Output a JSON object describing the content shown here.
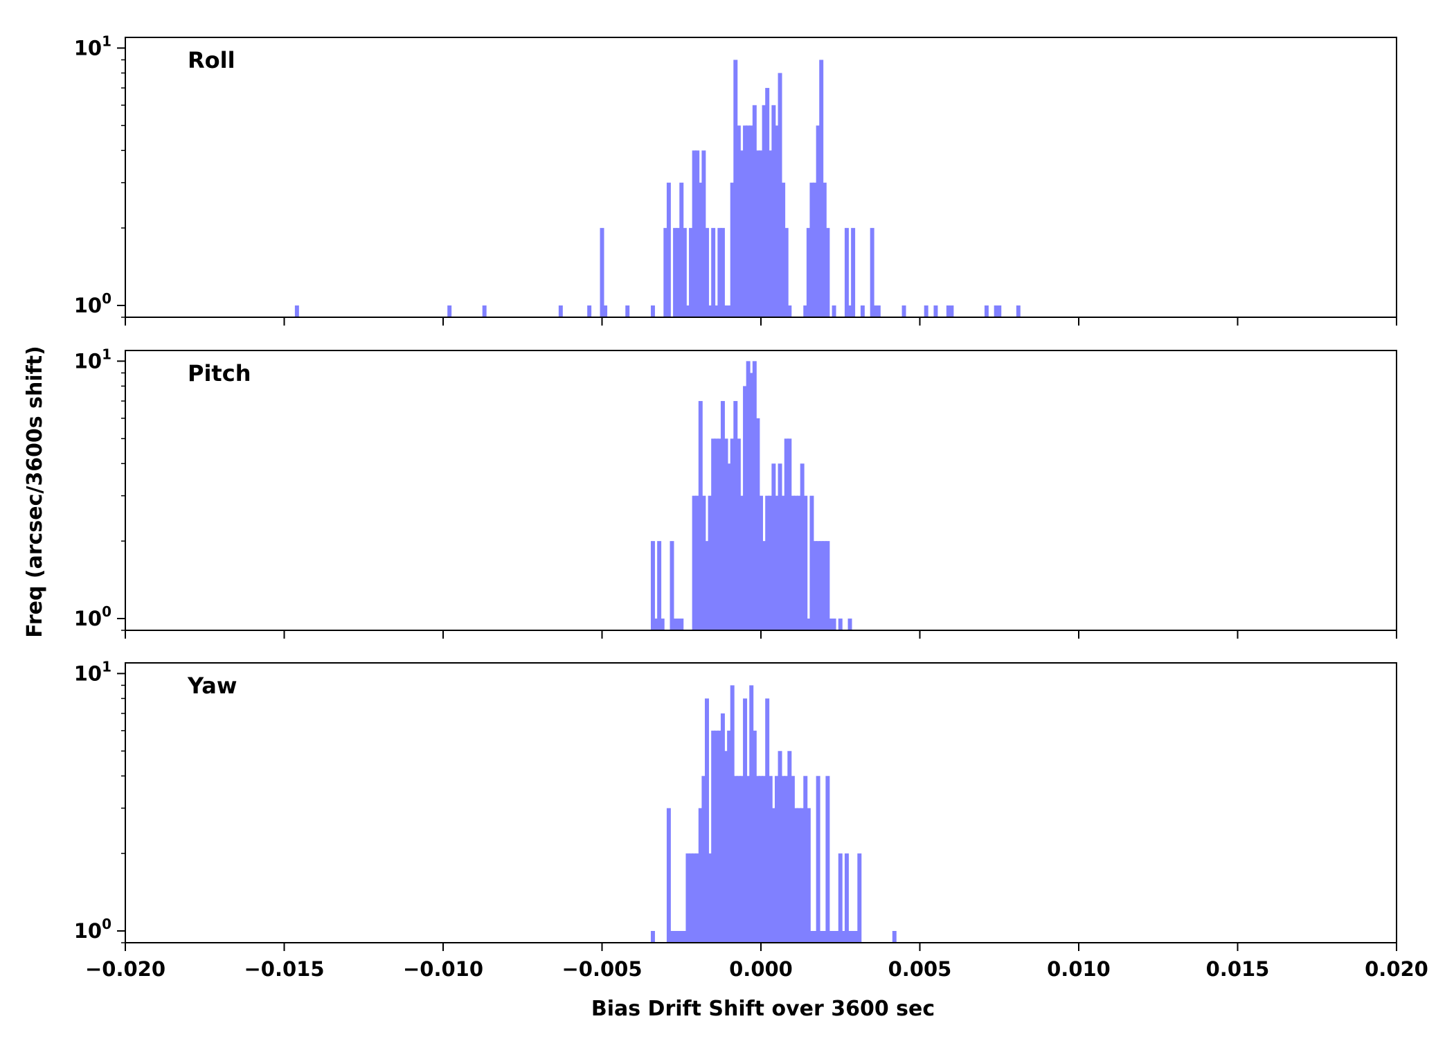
{
  "chart_data": {
    "type": "bar",
    "xlabel": "Bias Drift Shift over 3600 sec",
    "ylabel": "Freq (arcsec/3600s shift)",
    "xlim": [
      -0.02,
      0.02
    ],
    "x_ticks": [
      "−0.020",
      "−0.015",
      "−0.010",
      "−0.005",
      "0.000",
      "0.005",
      "0.010",
      "0.015",
      "0.020"
    ],
    "y_scale": "log",
    "ylim": [
      0.9,
      11
    ],
    "y_ticks": [
      {
        "base": "10",
        "exp": "0"
      },
      {
        "base": "10",
        "exp": "1"
      }
    ],
    "bin_width": 0.00013,
    "bar_color": "#8080ff",
    "grid": false,
    "panels": [
      {
        "title": "Roll",
        "bins": [
          {
            "x": -0.0146,
            "y": 1
          },
          {
            "x": -0.0098,
            "y": 1
          },
          {
            "x": -0.0087,
            "y": 1
          },
          {
            "x": -0.0063,
            "y": 1
          },
          {
            "x": -0.0054,
            "y": 1
          },
          {
            "x": -0.005,
            "y": 2
          },
          {
            "x": -0.0049,
            "y": 1
          },
          {
            "x": -0.0042,
            "y": 1
          },
          {
            "x": -0.0034,
            "y": 1
          },
          {
            "x": -0.003,
            "y": 2
          },
          {
            "x": -0.0029,
            "y": 3
          },
          {
            "x": -0.0027,
            "y": 2
          },
          {
            "x": -0.0026,
            "y": 2
          },
          {
            "x": -0.0025,
            "y": 3
          },
          {
            "x": -0.0024,
            "y": 2
          },
          {
            "x": -0.0023,
            "y": 1
          },
          {
            "x": -0.0022,
            "y": 2
          },
          {
            "x": -0.0021,
            "y": 4
          },
          {
            "x": -0.002,
            "y": 4
          },
          {
            "x": -0.0019,
            "y": 3
          },
          {
            "x": -0.0018,
            "y": 4
          },
          {
            "x": -0.0017,
            "y": 2
          },
          {
            "x": -0.0016,
            "y": 1
          },
          {
            "x": -0.0015,
            "y": 2
          },
          {
            "x": -0.0014,
            "y": 1
          },
          {
            "x": -0.0013,
            "y": 2
          },
          {
            "x": -0.0012,
            "y": 2
          },
          {
            "x": -0.0011,
            "y": 1
          },
          {
            "x": -0.001,
            "y": 1
          },
          {
            "x": -0.0009,
            "y": 3
          },
          {
            "x": -0.0008,
            "y": 9
          },
          {
            "x": -0.0007,
            "y": 5
          },
          {
            "x": -0.0006,
            "y": 4
          },
          {
            "x": -0.0005,
            "y": 5
          },
          {
            "x": -0.0004,
            "y": 5
          },
          {
            "x": -0.0003,
            "y": 5
          },
          {
            "x": -0.0002,
            "y": 6
          },
          {
            "x": -0.0001,
            "y": 4
          },
          {
            "x": 0.0,
            "y": 4
          },
          {
            "x": 0.0001,
            "y": 6
          },
          {
            "x": 0.0002,
            "y": 7
          },
          {
            "x": 0.0003,
            "y": 4
          },
          {
            "x": 0.0004,
            "y": 6
          },
          {
            "x": 0.0005,
            "y": 5
          },
          {
            "x": 0.0006,
            "y": 8
          },
          {
            "x": 0.0007,
            "y": 3
          },
          {
            "x": 0.0008,
            "y": 2
          },
          {
            "x": 0.0009,
            "y": 1
          },
          {
            "x": 0.0014,
            "y": 1
          },
          {
            "x": 0.0015,
            "y": 2
          },
          {
            "x": 0.0016,
            "y": 3
          },
          {
            "x": 0.0017,
            "y": 3
          },
          {
            "x": 0.0018,
            "y": 5
          },
          {
            "x": 0.0019,
            "y": 9
          },
          {
            "x": 0.002,
            "y": 3
          },
          {
            "x": 0.0021,
            "y": 2
          },
          {
            "x": 0.0023,
            "y": 1
          },
          {
            "x": 0.0027,
            "y": 2
          },
          {
            "x": 0.0028,
            "y": 1
          },
          {
            "x": 0.0029,
            "y": 2
          },
          {
            "x": 0.0032,
            "y": 1
          },
          {
            "x": 0.0035,
            "y": 2
          },
          {
            "x": 0.0036,
            "y": 1
          },
          {
            "x": 0.0037,
            "y": 1
          },
          {
            "x": 0.0045,
            "y": 1
          },
          {
            "x": 0.0052,
            "y": 1
          },
          {
            "x": 0.0055,
            "y": 1
          },
          {
            "x": 0.0059,
            "y": 1
          },
          {
            "x": 0.006,
            "y": 1
          },
          {
            "x": 0.0071,
            "y": 1
          },
          {
            "x": 0.0074,
            "y": 1
          },
          {
            "x": 0.0075,
            "y": 1
          },
          {
            "x": 0.0081,
            "y": 1
          }
        ]
      },
      {
        "title": "Pitch",
        "bins": [
          {
            "x": -0.0034,
            "y": 2
          },
          {
            "x": -0.0033,
            "y": 1
          },
          {
            "x": -0.0032,
            "y": 2
          },
          {
            "x": -0.0031,
            "y": 1
          },
          {
            "x": -0.0028,
            "y": 2
          },
          {
            "x": -0.0027,
            "y": 1
          },
          {
            "x": -0.0026,
            "y": 1
          },
          {
            "x": -0.0025,
            "y": 1
          },
          {
            "x": -0.0021,
            "y": 3
          },
          {
            "x": -0.002,
            "y": 3
          },
          {
            "x": -0.0019,
            "y": 7
          },
          {
            "x": -0.0018,
            "y": 3
          },
          {
            "x": -0.0017,
            "y": 2
          },
          {
            "x": -0.0016,
            "y": 3
          },
          {
            "x": -0.0015,
            "y": 5
          },
          {
            "x": -0.0014,
            "y": 5
          },
          {
            "x": -0.0013,
            "y": 5
          },
          {
            "x": -0.0012,
            "y": 7
          },
          {
            "x": -0.0011,
            "y": 5
          },
          {
            "x": -0.001,
            "y": 4
          },
          {
            "x": -0.0009,
            "y": 5
          },
          {
            "x": -0.0008,
            "y": 7
          },
          {
            "x": -0.0007,
            "y": 5
          },
          {
            "x": -0.0006,
            "y": 3
          },
          {
            "x": -0.0005,
            "y": 8
          },
          {
            "x": -0.0004,
            "y": 10
          },
          {
            "x": -0.0003,
            "y": 9
          },
          {
            "x": -0.0002,
            "y": 10
          },
          {
            "x": -0.0001,
            "y": 6
          },
          {
            "x": 0.0,
            "y": 3
          },
          {
            "x": 0.0001,
            "y": 2
          },
          {
            "x": 0.0002,
            "y": 3
          },
          {
            "x": 0.0003,
            "y": 3
          },
          {
            "x": 0.0004,
            "y": 4
          },
          {
            "x": 0.0005,
            "y": 3
          },
          {
            "x": 0.0006,
            "y": 4
          },
          {
            "x": 0.0007,
            "y": 3
          },
          {
            "x": 0.0008,
            "y": 5
          },
          {
            "x": 0.0009,
            "y": 5
          },
          {
            "x": 0.001,
            "y": 3
          },
          {
            "x": 0.0011,
            "y": 3
          },
          {
            "x": 0.0012,
            "y": 3
          },
          {
            "x": 0.0013,
            "y": 4
          },
          {
            "x": 0.0014,
            "y": 3
          },
          {
            "x": 0.0015,
            "y": 1
          },
          {
            "x": 0.0016,
            "y": 3
          },
          {
            "x": 0.0017,
            "y": 2
          },
          {
            "x": 0.0018,
            "y": 2
          },
          {
            "x": 0.0019,
            "y": 2
          },
          {
            "x": 0.002,
            "y": 2
          },
          {
            "x": 0.0021,
            "y": 2
          },
          {
            "x": 0.0022,
            "y": 1
          },
          {
            "x": 0.0023,
            "y": 1
          },
          {
            "x": 0.0025,
            "y": 1
          },
          {
            "x": 0.0028,
            "y": 1
          }
        ]
      },
      {
        "title": "Yaw",
        "bins": [
          {
            "x": -0.0034,
            "y": 1
          },
          {
            "x": -0.0029,
            "y": 3
          },
          {
            "x": -0.0028,
            "y": 1
          },
          {
            "x": -0.0027,
            "y": 1
          },
          {
            "x": -0.0026,
            "y": 1
          },
          {
            "x": -0.0025,
            "y": 1
          },
          {
            "x": -0.0024,
            "y": 1
          },
          {
            "x": -0.0023,
            "y": 2
          },
          {
            "x": -0.0022,
            "y": 2
          },
          {
            "x": -0.0021,
            "y": 2
          },
          {
            "x": -0.002,
            "y": 2
          },
          {
            "x": -0.0019,
            "y": 3
          },
          {
            "x": -0.0018,
            "y": 4
          },
          {
            "x": -0.0017,
            "y": 8
          },
          {
            "x": -0.0016,
            "y": 2
          },
          {
            "x": -0.0015,
            "y": 6
          },
          {
            "x": -0.0014,
            "y": 6
          },
          {
            "x": -0.0013,
            "y": 6
          },
          {
            "x": -0.0012,
            "y": 7
          },
          {
            "x": -0.0011,
            "y": 5
          },
          {
            "x": -0.001,
            "y": 6
          },
          {
            "x": -0.0009,
            "y": 9
          },
          {
            "x": -0.0008,
            "y": 4
          },
          {
            "x": -0.0007,
            "y": 4
          },
          {
            "x": -0.0006,
            "y": 4
          },
          {
            "x": -0.0005,
            "y": 8
          },
          {
            "x": -0.0004,
            "y": 4
          },
          {
            "x": -0.0003,
            "y": 9
          },
          {
            "x": -0.0002,
            "y": 6
          },
          {
            "x": -0.0001,
            "y": 4
          },
          {
            "x": 0.0,
            "y": 4
          },
          {
            "x": 0.0001,
            "y": 4
          },
          {
            "x": 0.0002,
            "y": 8
          },
          {
            "x": 0.0003,
            "y": 4
          },
          {
            "x": 0.0004,
            "y": 3
          },
          {
            "x": 0.0005,
            "y": 4
          },
          {
            "x": 0.0006,
            "y": 5
          },
          {
            "x": 0.0007,
            "y": 4
          },
          {
            "x": 0.0008,
            "y": 4
          },
          {
            "x": 0.0009,
            "y": 5
          },
          {
            "x": 0.001,
            "y": 4
          },
          {
            "x": 0.0011,
            "y": 3
          },
          {
            "x": 0.0012,
            "y": 3
          },
          {
            "x": 0.0013,
            "y": 3
          },
          {
            "x": 0.0014,
            "y": 4
          },
          {
            "x": 0.0015,
            "y": 3
          },
          {
            "x": 0.0016,
            "y": 1
          },
          {
            "x": 0.0017,
            "y": 1
          },
          {
            "x": 0.0018,
            "y": 4
          },
          {
            "x": 0.0019,
            "y": 1
          },
          {
            "x": 0.002,
            "y": 1
          },
          {
            "x": 0.0021,
            "y": 4
          },
          {
            "x": 0.0022,
            "y": 1
          },
          {
            "x": 0.0023,
            "y": 1
          },
          {
            "x": 0.0024,
            "y": 1
          },
          {
            "x": 0.0025,
            "y": 2
          },
          {
            "x": 0.0026,
            "y": 1
          },
          {
            "x": 0.0027,
            "y": 2
          },
          {
            "x": 0.0028,
            "y": 1
          },
          {
            "x": 0.0029,
            "y": 1
          },
          {
            "x": 0.003,
            "y": 1
          },
          {
            "x": 0.0031,
            "y": 2
          },
          {
            "x": 0.0042,
            "y": 1
          }
        ]
      }
    ]
  }
}
